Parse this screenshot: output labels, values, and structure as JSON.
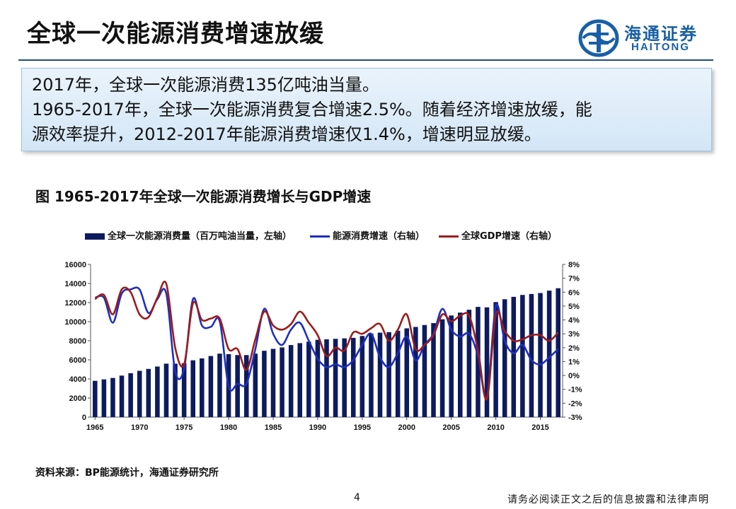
{
  "page": {
    "title": "全球一次能源消费增速放缓",
    "logo_cn": "海通证券",
    "logo_en": "HAITONG",
    "page_number": "4",
    "disclaimer": "请务必阅读正文之后的信息披露和法律声明",
    "source": "资料来源：BP能源统计，海通证券研究所"
  },
  "summary": {
    "line1": "2017年，全球一次能源消费135亿吨油当量。",
    "line2": "1965-2017年，全球一次能源消费复合增速2.5%。随着经济增速放缓，能",
    "line3": "源效率提升，2012-2017年能源消费增速仅1.4%，增速明显放缓。"
  },
  "colors": {
    "bar": "#0d1b5e",
    "energy_growth": "#1f2fbf",
    "gdp_growth": "#9b1c1c",
    "brand": "#1a5fa6"
  },
  "chart_data": {
    "type": "bar",
    "title": "图 1965-2017年全球一次能源消费增长与GDP增速",
    "x": [
      1965,
      1966,
      1967,
      1968,
      1969,
      1970,
      1971,
      1972,
      1973,
      1974,
      1975,
      1976,
      1977,
      1978,
      1979,
      1980,
      1981,
      1982,
      1983,
      1984,
      1985,
      1986,
      1987,
      1988,
      1989,
      1990,
      1991,
      1992,
      1993,
      1994,
      1995,
      1996,
      1997,
      1998,
      1999,
      2000,
      2001,
      2002,
      2003,
      2004,
      2005,
      2006,
      2007,
      2008,
      2009,
      2010,
      2011,
      2012,
      2013,
      2014,
      2015,
      2016,
      2017
    ],
    "x_ticks": [
      "1965",
      "1970",
      "1975",
      "1980",
      "1985",
      "1990",
      "1995",
      "2000",
      "2005",
      "2010",
      "2015"
    ],
    "y_left_ticks": [
      "0",
      "2000",
      "4000",
      "6000",
      "8000",
      "10000",
      "12000",
      "14000",
      "16000"
    ],
    "y_right_ticks": [
      "-3%",
      "-2%",
      "-1%",
      "0%",
      "1%",
      "2%",
      "3%",
      "4%",
      "5%",
      "6%",
      "7%",
      "8%"
    ],
    "ylim_left": [
      0,
      16000
    ],
    "ylim_right": [
      -3,
      8
    ],
    "series": [
      {
        "name": "全球一次能源消费量（百万吨油当量，左轴）",
        "axis": "left",
        "kind": "bar",
        "values": [
          3800,
          3950,
          4100,
          4350,
          4600,
          4850,
          5050,
          5300,
          5600,
          5600,
          5650,
          5950,
          6150,
          6400,
          6650,
          6600,
          6500,
          6500,
          6650,
          6950,
          7150,
          7300,
          7550,
          7750,
          7900,
          8100,
          8150,
          8200,
          8250,
          8300,
          8500,
          8750,
          8850,
          8900,
          9050,
          9300,
          9450,
          9650,
          9850,
          10250,
          10650,
          10950,
          11250,
          11550,
          11500,
          12050,
          12350,
          12600,
          12800,
          12900,
          13000,
          13250,
          13500
        ]
      },
      {
        "name": "能源消费增速（右轴）",
        "axis": "right",
        "kind": "line",
        "values": [
          5.6,
          5.6,
          3.8,
          5.9,
          6.2,
          6.2,
          4.5,
          5.5,
          5.9,
          0.3,
          0.5,
          5.5,
          3.6,
          3.5,
          3.9,
          -0.8,
          -0.6,
          -0.6,
          1.9,
          4.8,
          3.0,
          2.2,
          3.3,
          3.8,
          2.5,
          1.2,
          0.6,
          0.8,
          0.6,
          1.1,
          2.2,
          3.0,
          1.3,
          0.6,
          1.6,
          2.8,
          1.1,
          2.2,
          3.0,
          4.8,
          3.3,
          2.8,
          3.0,
          1.4,
          -1.6,
          5.0,
          2.5,
          1.6,
          2.2,
          1.1,
          0.8,
          1.3,
          1.9
        ]
      },
      {
        "name": "全球GDP增速（右轴）",
        "axis": "right",
        "kind": "line",
        "values": [
          5.5,
          5.8,
          4.4,
          6.2,
          6.0,
          4.4,
          4.2,
          5.6,
          6.6,
          2.0,
          0.8,
          5.2,
          4.0,
          4.1,
          4.1,
          1.9,
          1.9,
          0.4,
          2.6,
          4.6,
          3.6,
          3.3,
          3.7,
          4.6,
          3.8,
          2.9,
          1.4,
          2.0,
          1.8,
          3.1,
          3.0,
          3.4,
          3.7,
          2.5,
          3.3,
          4.4,
          1.9,
          2.2,
          2.9,
          4.4,
          3.9,
          4.3,
          4.3,
          1.8,
          -1.7,
          4.4,
          3.2,
          2.5,
          2.6,
          2.9,
          2.9,
          2.5,
          3.1
        ]
      }
    ]
  }
}
